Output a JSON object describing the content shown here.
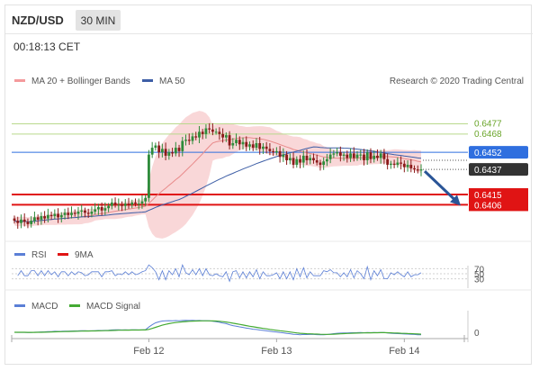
{
  "header": {
    "symbol": "NZD/USD",
    "timeframe": "30 MIN"
  },
  "timestamp": "00:18:13 CET",
  "legend": {
    "ma20": "MA 20 + Bollinger Bands",
    "ma50": "MA 50"
  },
  "credit": "Research © 2020 Trading Central",
  "colors": {
    "up": "#2e8b3a",
    "down": "#8b1a1a",
    "bb": "#f4b6b8",
    "ma20": "#e88a8a",
    "ma50": "#3d5ea6",
    "resist": "#b9d98c",
    "support": "#e01414",
    "pivot": "#2f6fdf",
    "rsi": "#5b7fd6",
    "rsi_ma": "#e01414",
    "macd": "#5b7fd6",
    "macd_signal": "#44aa33",
    "arrow": "#2a5597"
  },
  "chart_data": [
    {
      "type": "candlestick",
      "name": "price",
      "ylim": [
        0.6385,
        0.649
      ],
      "x_ticks": [
        "Feb 12",
        "Feb 13",
        "Feb 14"
      ],
      "x_tick_index": [
        40,
        78,
        116
      ],
      "closes": [
        0.6392,
        0.639,
        0.6393,
        0.6391,
        0.6389,
        0.6392,
        0.6395,
        0.6393,
        0.6396,
        0.6394,
        0.6397,
        0.6396,
        0.6398,
        0.6395,
        0.6397,
        0.6399,
        0.6397,
        0.6399,
        0.6398,
        0.64,
        0.6401,
        0.6399,
        0.6398,
        0.64,
        0.6402,
        0.6404,
        0.6401,
        0.6403,
        0.6405,
        0.6408,
        0.6406,
        0.6406,
        0.6405,
        0.6407,
        0.6406,
        0.6408,
        0.6407,
        0.6407,
        0.6409,
        0.6412,
        0.645,
        0.6456,
        0.6458,
        0.6452,
        0.6455,
        0.6449,
        0.6452,
        0.6451,
        0.6456,
        0.6453,
        0.6462,
        0.6463,
        0.6462,
        0.6466,
        0.6465,
        0.647,
        0.6468,
        0.6473,
        0.6472,
        0.647,
        0.647,
        0.6468,
        0.6465,
        0.6467,
        0.6458,
        0.646,
        0.6463,
        0.6459,
        0.6461,
        0.6457,
        0.6459,
        0.6456,
        0.646,
        0.6455,
        0.6457,
        0.6455,
        0.6453,
        0.6452,
        0.6453,
        0.6448,
        0.645,
        0.6445,
        0.6447,
        0.6441,
        0.6446,
        0.6443,
        0.6449,
        0.6445,
        0.6447,
        0.6445,
        0.6443,
        0.6441,
        0.6444,
        0.6446,
        0.645,
        0.6451,
        0.6452,
        0.6449,
        0.645,
        0.6447,
        0.6451,
        0.6447,
        0.645,
        0.645,
        0.6445,
        0.6452,
        0.6446,
        0.6449,
        0.6447,
        0.6451,
        0.6446,
        0.6441,
        0.6442,
        0.6441,
        0.6443,
        0.6442,
        0.6439,
        0.6441,
        0.6438,
        0.6437,
        0.6436,
        0.6437
      ],
      "last_price": 0.6437,
      "levels": [
        {
          "label": "0.6477",
          "value": 0.6477,
          "kind": "resistance"
        },
        {
          "label": "0.6468",
          "value": 0.6468,
          "kind": "resistance"
        },
        {
          "label": "0.6452",
          "value": 0.6452,
          "kind": "pivot"
        },
        {
          "label": "0.6437",
          "value": 0.6437,
          "kind": "last"
        },
        {
          "label": "0.6415",
          "value": 0.6415,
          "kind": "support"
        },
        {
          "label": "0.6406",
          "value": 0.6406,
          "kind": "support"
        }
      ]
    },
    {
      "type": "line",
      "name": "RSI",
      "legend": [
        "RSI",
        "9MA"
      ],
      "ylim": [
        0,
        100
      ],
      "tick_labels": [
        "70",
        "50",
        "30"
      ],
      "tick_values": [
        70,
        50,
        30
      ]
    },
    {
      "type": "line",
      "name": "MACD",
      "legend": [
        "MACD",
        "MACD Signal"
      ],
      "tick_labels": [
        "0"
      ],
      "tick_values": [
        0
      ]
    }
  ]
}
